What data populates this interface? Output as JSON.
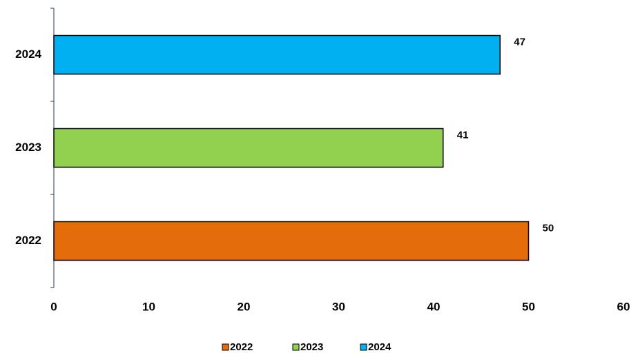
{
  "chart_data": {
    "type": "bar",
    "orientation": "horizontal",
    "categories": [
      "2022",
      "2023",
      "2024"
    ],
    "values": [
      50,
      41,
      47
    ],
    "colors": [
      "#E46C0A",
      "#92D050",
      "#00B0F0"
    ],
    "xlim": [
      0,
      60
    ],
    "x_ticks": [
      "0",
      "10",
      "20",
      "30",
      "40",
      "50",
      "60"
    ],
    "data_labels": [
      "50",
      "41",
      "47"
    ],
    "grid": false,
    "legend": {
      "position": "bottom",
      "entries": [
        "2022",
        "2023",
        "2024"
      ]
    }
  }
}
